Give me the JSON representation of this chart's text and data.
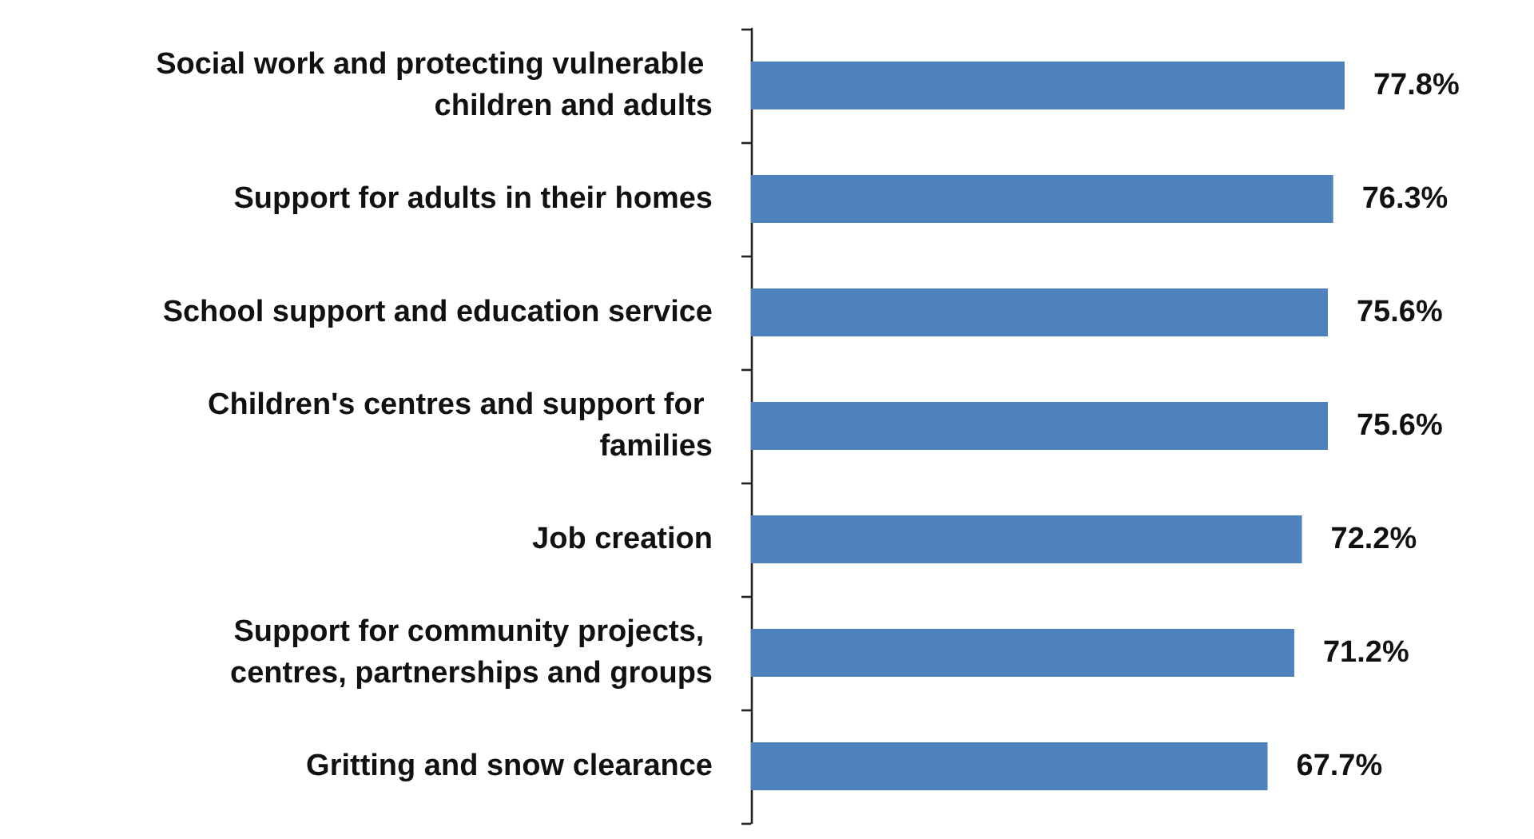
{
  "chart_data": {
    "type": "bar",
    "orientation": "horizontal",
    "categories": [
      "Social work and protecting vulnerable children and adults",
      "Support for adults in their homes",
      "School support and education service",
      "Children's centres and support for families",
      "Job creation",
      "Support for community projects, centres, partnerships and groups",
      "Gritting and snow clearance"
    ],
    "values": [
      77.8,
      76.3,
      75.6,
      75.6,
      72.2,
      71.2,
      67.7
    ],
    "value_labels": [
      "77.8%",
      "76.3%",
      "75.6%",
      "75.6%",
      "72.2%",
      "71.2%",
      "67.7%"
    ],
    "color": "#4f81bd",
    "grid": false
  }
}
